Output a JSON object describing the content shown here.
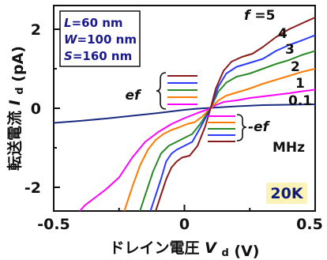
{
  "chart_data": {
    "type": "line",
    "ylabel_text": "転送電流",
    "ylabel_symbol": "I",
    "ylabel_sub": "d",
    "ylabel_unit": "(pA)",
    "xlabel_text": "ドレイン電圧",
    "xlabel_symbol": "V",
    "xlabel_sub": "d",
    "xlabel_unit": "(V)",
    "xlim": [
      -0.5,
      0.5
    ],
    "ylim": [
      -2.6,
      2.6
    ],
    "xticks": [
      "-0.5",
      "0",
      "0.5"
    ],
    "yticks": [
      "2",
      "0",
      "-2"
    ],
    "grid": false,
    "params": {
      "L": {
        "symbol": "L",
        "value": "=60 nm"
      },
      "W": {
        "symbol": "W",
        "value": "=100 nm"
      },
      "S": {
        "symbol": "S",
        "value": "=160 nm"
      }
    },
    "temperature": "20K",
    "freq_prefix": "f",
    "freq_unit": "MHz",
    "ef_label": "ef",
    "minus_ef_label": "-ef",
    "series": [
      {
        "name": "0.1",
        "color": "#1a2b80",
        "x": [
          -0.5,
          -0.4,
          -0.3,
          -0.2,
          -0.1,
          0.0,
          0.05,
          0.1,
          0.15,
          0.2,
          0.3,
          0.4,
          0.5
        ],
        "y": [
          -0.37,
          -0.32,
          -0.26,
          -0.19,
          -0.12,
          -0.04,
          -0.01,
          0.01,
          0.03,
          0.05,
          0.08,
          0.09,
          0.1
        ]
      },
      {
        "name": "1",
        "color": "#ff00ff",
        "x": [
          -0.4,
          -0.38,
          -0.35,
          -0.3,
          -0.25,
          -0.2,
          -0.15,
          -0.1,
          -0.05,
          0.0,
          0.05,
          0.08,
          0.1,
          0.12,
          0.15,
          0.2,
          0.25,
          0.3,
          0.35,
          0.4,
          0.45,
          0.5
        ],
        "y": [
          -2.6,
          -2.45,
          -2.3,
          -2.05,
          -1.75,
          -1.25,
          -0.85,
          -0.6,
          -0.4,
          -0.25,
          -0.12,
          -0.05,
          0.0,
          0.08,
          0.16,
          0.2,
          0.26,
          0.3,
          0.34,
          0.38,
          0.43,
          0.47
        ]
      },
      {
        "name": "2",
        "color": "#ff7a00",
        "x": [
          -0.23,
          -0.2,
          -0.17,
          -0.14,
          -0.11,
          -0.08,
          -0.05,
          -0.02,
          0.01,
          0.04,
          0.07,
          0.1,
          0.13,
          0.16,
          0.2,
          0.25,
          0.3,
          0.35,
          0.4,
          0.45,
          0.5
        ],
        "y": [
          -2.6,
          -2.0,
          -1.45,
          -1.05,
          -0.8,
          -0.65,
          -0.55,
          -0.48,
          -0.4,
          -0.35,
          -0.2,
          0.0,
          0.2,
          0.32,
          0.4,
          0.5,
          0.62,
          0.72,
          0.82,
          0.92,
          1.0
        ]
      },
      {
        "name": "3",
        "color": "#2a8a2a",
        "x": [
          -0.17,
          -0.15,
          -0.12,
          -0.09,
          -0.06,
          -0.03,
          0.0,
          0.03,
          0.06,
          0.1,
          0.13,
          0.16,
          0.2,
          0.25,
          0.3,
          0.35,
          0.4,
          0.45,
          0.5
        ],
        "y": [
          -2.6,
          -2.2,
          -1.6,
          -1.15,
          -0.95,
          -0.85,
          -0.75,
          -0.65,
          -0.4,
          0.0,
          0.42,
          0.65,
          0.8,
          0.88,
          1.0,
          1.12,
          1.22,
          1.35,
          1.45
        ]
      },
      {
        "name": "4",
        "color": "#2a3aff",
        "x": [
          -0.13,
          -0.11,
          -0.09,
          -0.07,
          -0.05,
          -0.03,
          0.0,
          0.03,
          0.06,
          0.1,
          0.13,
          0.16,
          0.2,
          0.25,
          0.3,
          0.35,
          0.4,
          0.45,
          0.5
        ],
        "y": [
          -2.6,
          -2.2,
          -1.8,
          -1.35,
          -1.15,
          -1.05,
          -0.95,
          -0.85,
          -0.5,
          0.0,
          0.55,
          0.88,
          1.05,
          1.15,
          1.25,
          1.45,
          1.6,
          1.72,
          1.85
        ]
      },
      {
        "name": "5",
        "color": "#8a1a1a",
        "x": [
          -0.11,
          -0.09,
          -0.07,
          -0.05,
          -0.03,
          -0.01,
          0.02,
          0.05,
          0.08,
          0.1,
          0.12,
          0.15,
          0.18,
          0.22,
          0.26,
          0.3,
          0.35,
          0.4,
          0.45,
          0.5
        ],
        "y": [
          -2.6,
          -2.2,
          -1.8,
          -1.5,
          -1.35,
          -1.25,
          -1.2,
          -0.95,
          -0.45,
          0.0,
          0.5,
          0.95,
          1.18,
          1.3,
          1.38,
          1.55,
          1.8,
          2.0,
          2.15,
          2.3
        ]
      }
    ]
  }
}
